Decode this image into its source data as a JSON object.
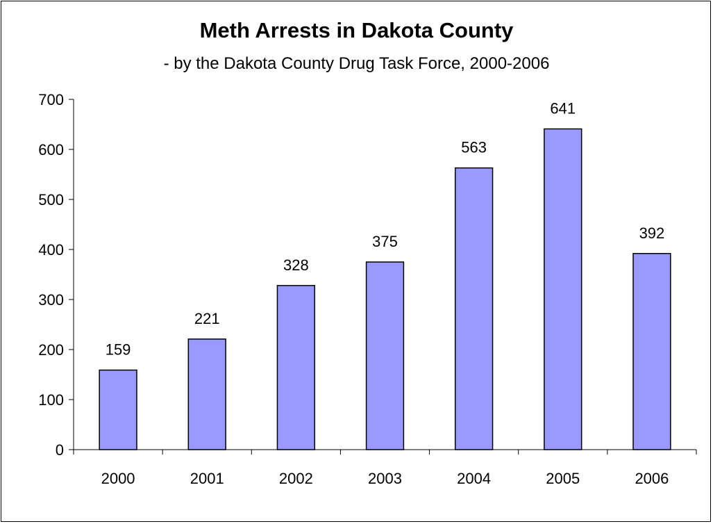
{
  "chart_data": {
    "type": "bar",
    "title": "Meth Arrests in Dakota County",
    "subtitle": "- by the Dakota County Drug Task Force, 2000-2006",
    "categories": [
      "2000",
      "2001",
      "2002",
      "2003",
      "2004",
      "2005",
      "2006"
    ],
    "values": [
      159,
      221,
      328,
      375,
      563,
      641,
      392
    ],
    "data_labels": [
      "159",
      "221",
      "328",
      "375",
      "563",
      "641",
      "392"
    ],
    "xlabel": "",
    "ylabel": "",
    "ylim": [
      0,
      700
    ],
    "yticks": [
      "0",
      "100",
      "200",
      "300",
      "400",
      "500",
      "600",
      "700"
    ],
    "grid": false,
    "legend": "none",
    "colors": {
      "bar_fill": "#9999ff",
      "bar_stroke": "#000000",
      "axis": "#000000"
    }
  }
}
